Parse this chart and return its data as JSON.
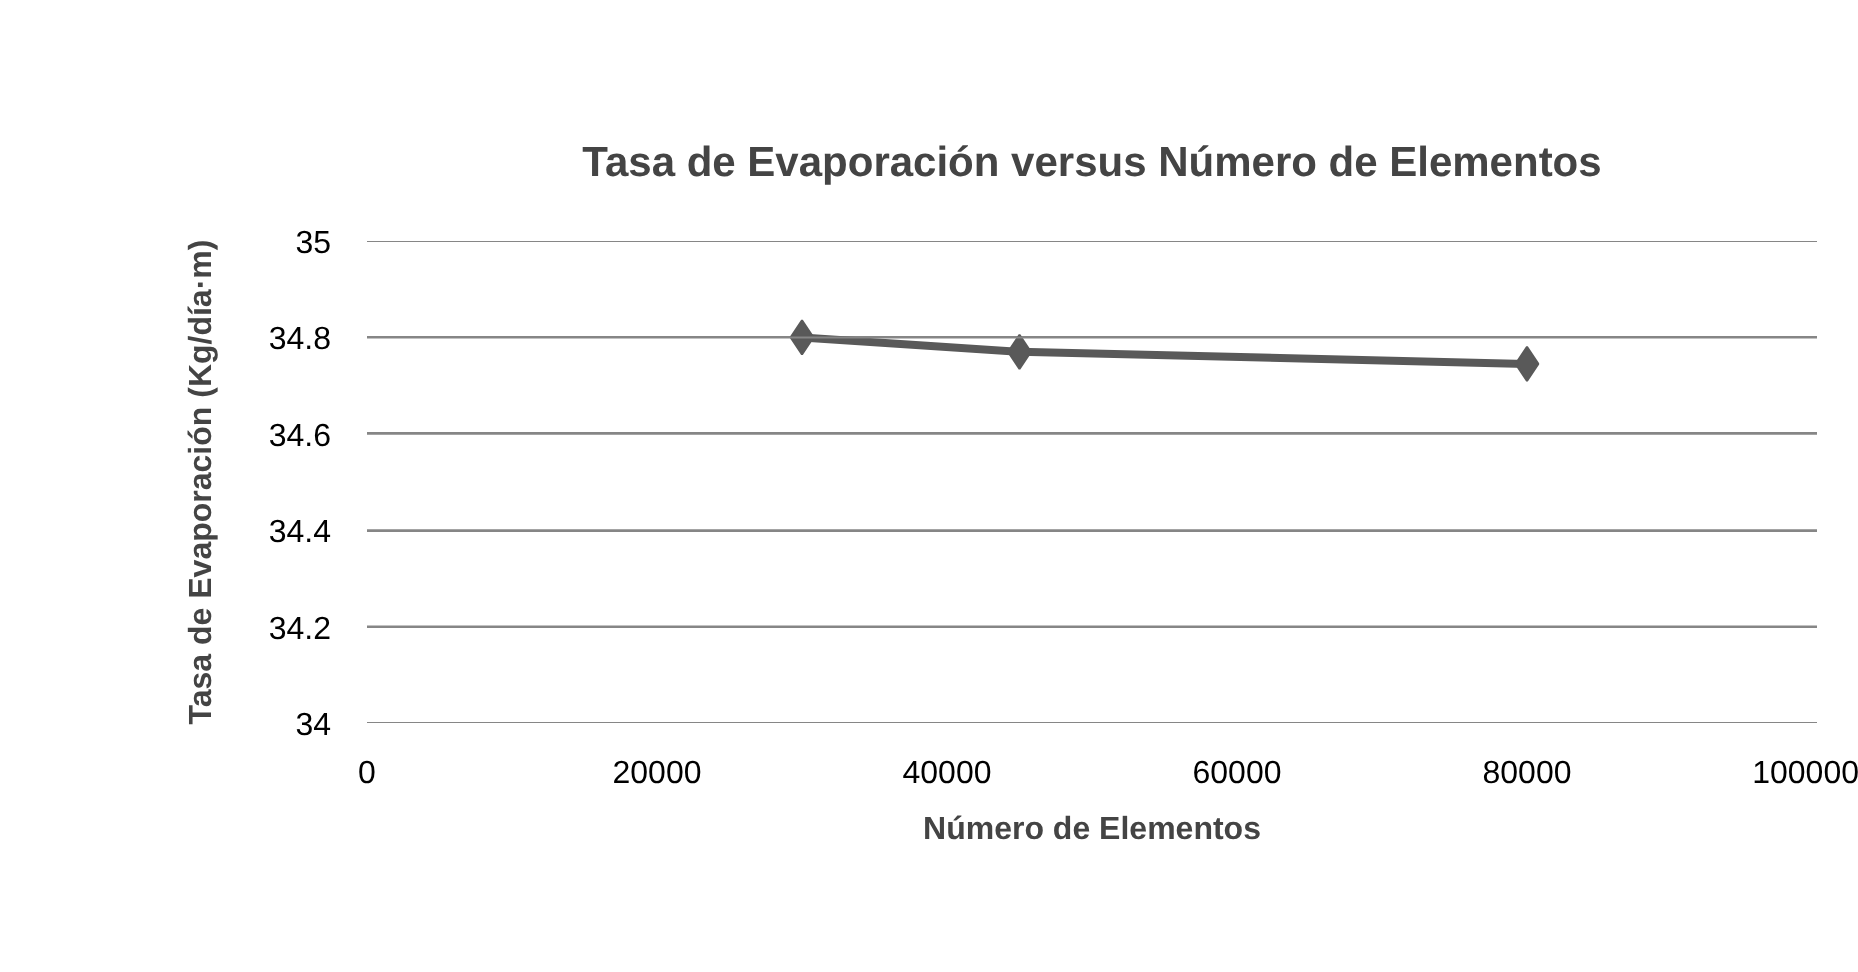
{
  "chart_data": {
    "type": "line",
    "title": "Tasa de Evaporación versus Número de Elementos",
    "xlabel": "Número de Elementos",
    "ylabel": "Tasa de Evaporación (Kg/día·m)",
    "x": [
      30000,
      45000,
      80000
    ],
    "series": [
      {
        "color": "#595959",
        "values": [
          34.8,
          34.77,
          34.745
        ]
      }
    ],
    "xlim": [
      0,
      100000
    ],
    "xticks": [
      0,
      20000,
      40000,
      60000,
      80000,
      100000
    ],
    "ylim": [
      34,
      35
    ],
    "yticks": [
      34,
      34.2,
      34.4,
      34.6,
      34.8,
      35
    ],
    "grid": "y",
    "marker": "diamond",
    "line_style": "solid"
  }
}
